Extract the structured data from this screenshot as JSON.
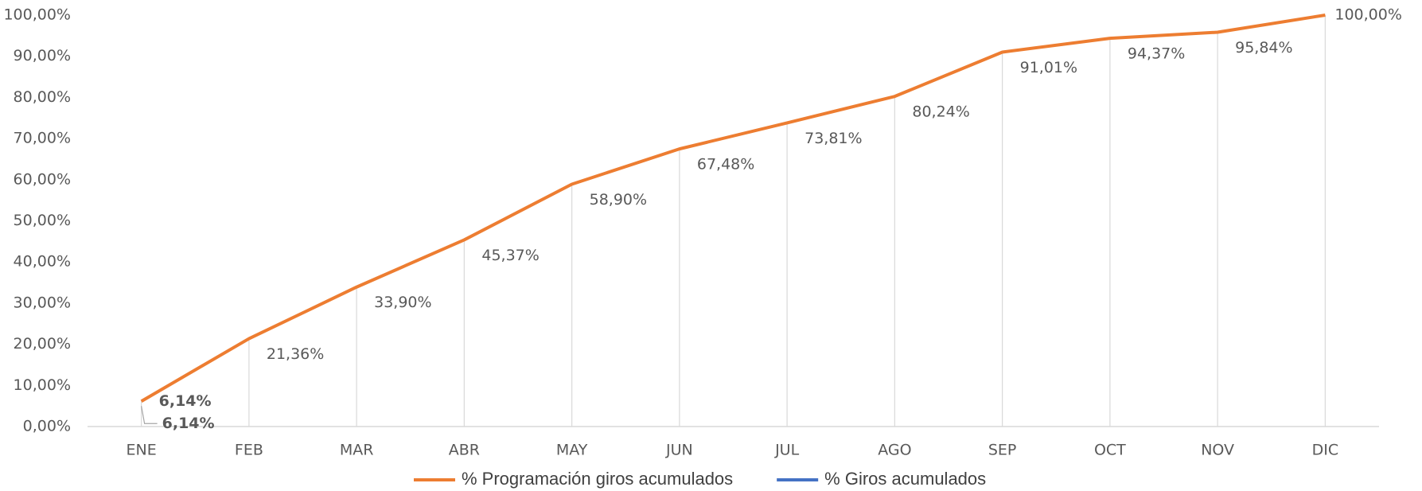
{
  "chart_data": {
    "type": "line",
    "categories": [
      "ENE",
      "FEB",
      "MAR",
      "ABR",
      "MAY",
      "JUN",
      "JUL",
      "AGO",
      "SEP",
      "OCT",
      "NOV",
      "DIC"
    ],
    "series": [
      {
        "name": "% Programación giros acumulados",
        "color": "#ed7d31",
        "values": [
          6.14,
          21.36,
          33.9,
          45.37,
          58.9,
          67.48,
          73.81,
          80.24,
          91.01,
          94.37,
          95.84,
          100
        ],
        "value_labels": [
          "6,14%",
          "21,36%",
          "33,90%",
          "45,37%",
          "58,90%",
          "67,48%",
          "73,81%",
          "80,24%",
          "91,01%",
          "94,37%",
          "95,84%",
          "100,00%"
        ]
      },
      {
        "name": "% Giros acumulados",
        "color": "#4472c4",
        "values": [
          6.14,
          null,
          null,
          null,
          null,
          null,
          null,
          null,
          null,
          null,
          null,
          null
        ],
        "value_labels": [
          "6,14%",
          null,
          null,
          null,
          null,
          null,
          null,
          null,
          null,
          null,
          null,
          null
        ]
      }
    ],
    "ylim": [
      0,
      100
    ],
    "yticks": [
      {
        "value": 0,
        "label": "0,00%"
      },
      {
        "value": 10,
        "label": "10,00%"
      },
      {
        "value": 20,
        "label": "20,00%"
      },
      {
        "value": 30,
        "label": "30,00%"
      },
      {
        "value": 40,
        "label": "40,00%"
      },
      {
        "value": 50,
        "label": "50,00%"
      },
      {
        "value": 60,
        "label": "60,00%"
      },
      {
        "value": 70,
        "label": "70,00%"
      },
      {
        "value": 80,
        "label": "80,00%"
      },
      {
        "value": 90,
        "label": "90,00%"
      },
      {
        "value": 100,
        "label": "100,00%"
      }
    ],
    "drop_lines": true,
    "legend": "bottom"
  }
}
